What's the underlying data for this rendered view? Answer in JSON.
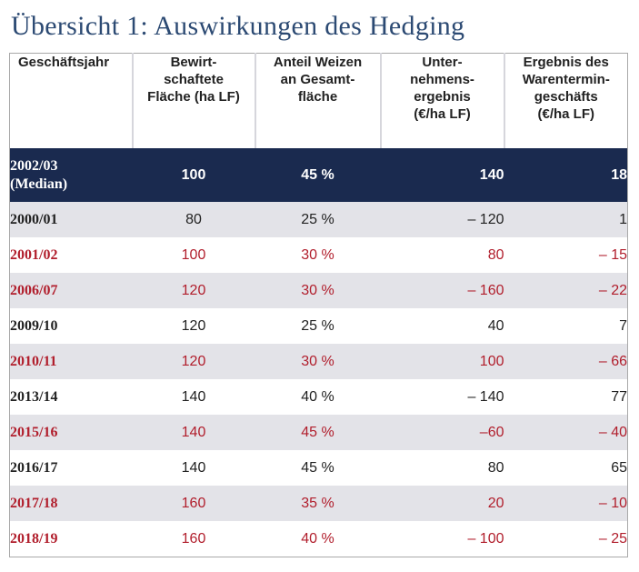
{
  "title": "Übersicht 1: Auswirkungen des Hedging",
  "colors": {
    "title": "#2c4a73",
    "median_row": "#1a2a4f",
    "alt_row": "#e3e3e8",
    "red_text": "#b11e2c"
  },
  "columns": [
    "Geschäftsjahr",
    "Bewirt-\nschaftete\nFläche (ha LF)",
    "Anteil Weizen\nan Gesamt-\nfläche",
    "Unter-\nnehmens-\nergebnis\n(€/ha LF)",
    "Ergebnis des\nWarentermin-\ngeschäfts\n(€/ha LF)"
  ],
  "median": {
    "cells": [
      "2002/03\n(Median)",
      "100",
      "45 %",
      "140",
      "18"
    ]
  },
  "rows": [
    {
      "cells": [
        "2000/01",
        "80",
        "25 %",
        "– 120",
        "1"
      ],
      "red": false,
      "alt": true
    },
    {
      "cells": [
        "2001/02",
        "100",
        "30 %",
        "80",
        "– 15"
      ],
      "red": true,
      "alt": false
    },
    {
      "cells": [
        "2006/07",
        "120",
        "30 %",
        "– 160",
        "– 22"
      ],
      "red": true,
      "alt": true
    },
    {
      "cells": [
        "2009/10",
        "120",
        "25 %",
        "40",
        "7"
      ],
      "red": false,
      "alt": false
    },
    {
      "cells": [
        "2010/11",
        "120",
        "30 %",
        "100",
        "– 66"
      ],
      "red": true,
      "alt": true
    },
    {
      "cells": [
        "2013/14",
        "140",
        "40 %",
        "– 140",
        "77"
      ],
      "red": false,
      "alt": false
    },
    {
      "cells": [
        "2015/16",
        "140",
        "45 %",
        "–60",
        "– 40"
      ],
      "red": true,
      "alt": true
    },
    {
      "cells": [
        "2016/17",
        "140",
        "45 %",
        "80",
        "65"
      ],
      "red": false,
      "alt": false
    },
    {
      "cells": [
        "2017/18",
        "160",
        "35 %",
        "20",
        "– 10"
      ],
      "red": true,
      "alt": true
    },
    {
      "cells": [
        "2018/19",
        "160",
        "40 %",
        "– 100",
        "– 25"
      ],
      "red": true,
      "alt": false
    }
  ]
}
